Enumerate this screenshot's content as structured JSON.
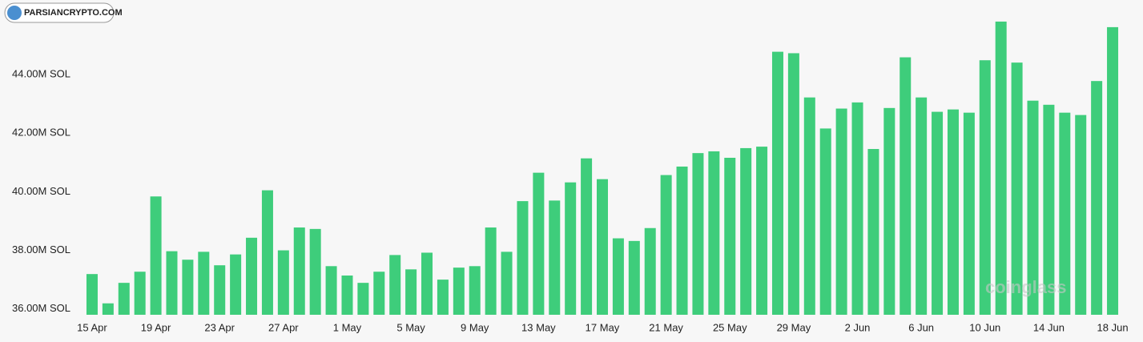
{
  "chart_data": {
    "type": "bar",
    "categories": [
      "15 Apr",
      null,
      null,
      null,
      "19 Apr",
      null,
      null,
      null,
      "23 Apr",
      null,
      null,
      null,
      "27 Apr",
      null,
      null,
      null,
      "1 May",
      null,
      null,
      null,
      "5 May",
      null,
      null,
      null,
      "9 May",
      null,
      null,
      null,
      "13 May",
      null,
      null,
      null,
      "17 May",
      null,
      null,
      null,
      "21 May",
      null,
      null,
      null,
      "25 May",
      null,
      null,
      null,
      "29 May",
      null,
      null,
      null,
      "2 Jun",
      null,
      null,
      null,
      "6 Jun",
      null,
      null,
      null,
      "10 Jun",
      null,
      null,
      null,
      "14 Jun",
      null,
      null,
      null,
      "18 Jun"
    ],
    "values": [
      37.19,
      36.19,
      36.89,
      37.27,
      39.84,
      37.97,
      37.68,
      37.95,
      37.49,
      37.86,
      38.43,
      40.05,
      38.0,
      38.78,
      38.73,
      37.46,
      37.14,
      36.89,
      37.27,
      37.84,
      37.35,
      37.92,
      37.0,
      37.41,
      37.46,
      38.78,
      37.95,
      39.68,
      40.65,
      39.7,
      40.32,
      41.14,
      40.43,
      38.41,
      38.32,
      38.76,
      40.57,
      40.86,
      41.32,
      41.38,
      41.16,
      41.49,
      41.54,
      44.78,
      44.73,
      43.22,
      42.16,
      42.84,
      43.05,
      41.46,
      42.86,
      44.59,
      43.22,
      42.73,
      42.81,
      42.7,
      44.49,
      45.81,
      44.41,
      43.11,
      42.97,
      42.7,
      42.62,
      43.78,
      45.62
    ],
    "color": "#3ecd7b",
    "ylim": [
      35.8,
      46
    ],
    "yticks": [
      {
        "value": 36,
        "label": "36.00M SOL"
      },
      {
        "value": 38,
        "label": "38.00M SOL"
      },
      {
        "value": 40,
        "label": "40.00M SOL"
      },
      {
        "value": 42,
        "label": "42.00M SOL"
      },
      {
        "value": 44,
        "label": "44.00M SOL"
      }
    ],
    "grid": false,
    "watermarks": [
      "PARSIANCRYPTO.COM",
      "coinglass"
    ]
  }
}
